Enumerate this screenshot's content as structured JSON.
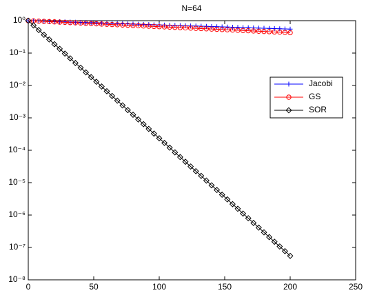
{
  "chart_data": {
    "type": "line",
    "title": "N=64",
    "x": [
      0,
      4,
      8,
      12,
      16,
      20,
      24,
      28,
      32,
      36,
      40,
      44,
      48,
      52,
      56,
      60,
      64,
      68,
      72,
      76,
      80,
      84,
      88,
      92,
      96,
      100,
      104,
      108,
      112,
      116,
      120,
      124,
      128,
      132,
      136,
      140,
      144,
      148,
      152,
      156,
      160,
      164,
      168,
      172,
      176,
      180,
      184,
      188,
      192,
      196,
      200
    ],
    "series": [
      {
        "name": "Jacobi",
        "color": "#0000ff",
        "marker": "plus",
        "values": [
          1,
          0.988,
          0.976,
          0.964,
          0.953,
          0.942,
          0.93,
          0.919,
          0.909,
          0.898,
          0.887,
          0.876,
          0.866,
          0.856,
          0.846,
          0.836,
          0.826,
          0.816,
          0.806,
          0.796,
          0.787,
          0.778,
          0.768,
          0.759,
          0.75,
          0.741,
          0.733,
          0.724,
          0.715,
          0.707,
          0.698,
          0.69,
          0.682,
          0.674,
          0.666,
          0.658,
          0.65,
          0.642,
          0.635,
          0.627,
          0.62,
          0.612,
          0.605,
          0.598,
          0.591,
          0.584,
          0.577,
          0.57,
          0.563,
          0.557,
          0.55
        ]
      },
      {
        "name": "GS",
        "color": "#ff0000",
        "marker": "circle",
        "values": [
          1,
          0.983,
          0.967,
          0.95,
          0.934,
          0.919,
          0.903,
          0.888,
          0.873,
          0.858,
          0.844,
          0.829,
          0.815,
          0.802,
          0.788,
          0.775,
          0.761,
          0.749,
          0.736,
          0.724,
          0.711,
          0.699,
          0.688,
          0.676,
          0.665,
          0.653,
          0.642,
          0.632,
          0.621,
          0.61,
          0.6,
          0.59,
          0.58,
          0.57,
          0.561,
          0.551,
          0.542,
          0.533,
          0.524,
          0.515,
          0.506,
          0.498,
          0.489,
          0.481,
          0.473,
          0.465,
          0.457,
          0.449,
          0.442,
          0.434,
          0.427
        ]
      },
      {
        "name": "SOR",
        "color": "#000000",
        "marker": "diamond",
        "values": [
          1,
          0.716,
          0.513,
          0.367,
          0.263,
          0.188,
          0.135,
          0.0963,
          0.0689,
          0.0493,
          0.0353,
          0.0253,
          0.0181,
          0.013,
          0.00927,
          0.00664,
          0.00475,
          0.0034,
          0.00243,
          0.00174,
          0.00125,
          0.000893,
          0.000639,
          0.000457,
          0.000327,
          0.000234,
          0.000168,
          0.00012,
          8.6e-05,
          6.15e-05,
          4.41e-05,
          3.15e-05,
          2.26e-05,
          1.62e-05,
          1.16e-05,
          8.28e-06,
          5.93e-06,
          4.24e-06,
          3.04e-06,
          2.17e-06,
          1.56e-06,
          1.11e-06,
          7.97e-07,
          5.71e-07,
          4.08e-07,
          2.92e-07,
          2.09e-07,
          1.5e-07,
          1.07e-07,
          7.68e-08,
          5.5e-08
        ]
      }
    ],
    "xlim": [
      0,
      250
    ],
    "xticks": [
      0,
      50,
      100,
      150,
      200,
      250
    ],
    "ylim": [
      1e-08,
      1
    ],
    "yscale": "log",
    "yticks": [
      {
        "value": 1e-08,
        "label": "10⁻⁸"
      },
      {
        "value": 1e-07,
        "label": "10⁻⁷"
      },
      {
        "value": 1e-06,
        "label": "10⁻⁶"
      },
      {
        "value": 1e-05,
        "label": "10⁻⁵"
      },
      {
        "value": 0.0001,
        "label": "10⁻⁴"
      },
      {
        "value": 0.001,
        "label": "10⁻³"
      },
      {
        "value": 0.01,
        "label": "10⁻²"
      },
      {
        "value": 0.1,
        "label": "10⁻¹"
      },
      {
        "value": 1,
        "label": "10⁰"
      }
    ],
    "grid": false,
    "legend": "right"
  }
}
